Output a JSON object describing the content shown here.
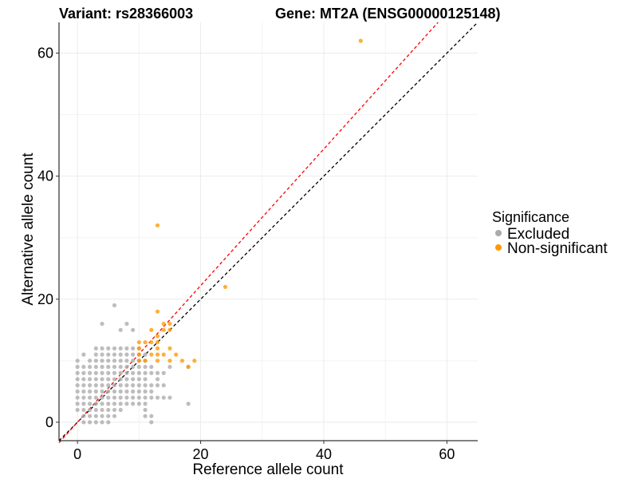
{
  "chart_data": {
    "type": "scatter",
    "title_variant": "Variant: rs28366003",
    "title_gene": "Gene: MT2A (ENSG00000125148)",
    "xlabel": "Reference allele count",
    "ylabel": "Alternative allele count",
    "xlim": [
      -3,
      65
    ],
    "ylim": [
      -3,
      65
    ],
    "x_ticks": [
      0,
      20,
      40,
      60
    ],
    "y_ticks": [
      0,
      20,
      40,
      60
    ],
    "grid": true,
    "reference_lines": [
      {
        "name": "identity",
        "style": "dashed",
        "color": "#000000",
        "slope": 1,
        "intercept": 0
      },
      {
        "name": "fit",
        "style": "dashed",
        "color": "#ff0000",
        "slope": 1.11,
        "intercept": 0
      }
    ],
    "legend": {
      "title": "Significance",
      "position": "right",
      "entries": [
        {
          "label": "Excluded",
          "color": "#aaaaaa"
        },
        {
          "label": "Non-significant",
          "color": "#ff9900"
        }
      ]
    },
    "series": [
      {
        "name": "Excluded",
        "color": "#aaaaaa",
        "points": [
          [
            0,
            2
          ],
          [
            0,
            3
          ],
          [
            0,
            4
          ],
          [
            0,
            5
          ],
          [
            0,
            6
          ],
          [
            0,
            7
          ],
          [
            0,
            8
          ],
          [
            0,
            9
          ],
          [
            0,
            10
          ],
          [
            1,
            0
          ],
          [
            1,
            1
          ],
          [
            1,
            2
          ],
          [
            1,
            3
          ],
          [
            1,
            4
          ],
          [
            1,
            5
          ],
          [
            1,
            6
          ],
          [
            1,
            7
          ],
          [
            1,
            8
          ],
          [
            1,
            9
          ],
          [
            1,
            11
          ],
          [
            2,
            0
          ],
          [
            2,
            1
          ],
          [
            2,
            2
          ],
          [
            2,
            3
          ],
          [
            2,
            4
          ],
          [
            2,
            5
          ],
          [
            2,
            6
          ],
          [
            2,
            7
          ],
          [
            2,
            8
          ],
          [
            2,
            9
          ],
          [
            2,
            10
          ],
          [
            3,
            0
          ],
          [
            3,
            1
          ],
          [
            3,
            2
          ],
          [
            3,
            3
          ],
          [
            3,
            4
          ],
          [
            3,
            5
          ],
          [
            3,
            6
          ],
          [
            3,
            7
          ],
          [
            3,
            8
          ],
          [
            3,
            9
          ],
          [
            3,
            10
          ],
          [
            3,
            11
          ],
          [
            3,
            12
          ],
          [
            4,
            0
          ],
          [
            4,
            1
          ],
          [
            4,
            2
          ],
          [
            4,
            3
          ],
          [
            4,
            4
          ],
          [
            4,
            5
          ],
          [
            4,
            6
          ],
          [
            4,
            7
          ],
          [
            4,
            8
          ],
          [
            4,
            9
          ],
          [
            4,
            10
          ],
          [
            4,
            11
          ],
          [
            4,
            12
          ],
          [
            4,
            16
          ],
          [
            5,
            0
          ],
          [
            5,
            1
          ],
          [
            5,
            2
          ],
          [
            5,
            3
          ],
          [
            5,
            4
          ],
          [
            5,
            5
          ],
          [
            5,
            6
          ],
          [
            5,
            7
          ],
          [
            5,
            8
          ],
          [
            5,
            9
          ],
          [
            5,
            10
          ],
          [
            5,
            11
          ],
          [
            5,
            12
          ],
          [
            6,
            1
          ],
          [
            6,
            2
          ],
          [
            6,
            3
          ],
          [
            6,
            4
          ],
          [
            6,
            5
          ],
          [
            6,
            6
          ],
          [
            6,
            7
          ],
          [
            6,
            8
          ],
          [
            6,
            9
          ],
          [
            6,
            10
          ],
          [
            6,
            11
          ],
          [
            6,
            12
          ],
          [
            6,
            19
          ],
          [
            7,
            2
          ],
          [
            7,
            3
          ],
          [
            7,
            4
          ],
          [
            7,
            5
          ],
          [
            7,
            6
          ],
          [
            7,
            7
          ],
          [
            7,
            8
          ],
          [
            7,
            9
          ],
          [
            7,
            10
          ],
          [
            7,
            11
          ],
          [
            7,
            12
          ],
          [
            7,
            15
          ],
          [
            8,
            3
          ],
          [
            8,
            4
          ],
          [
            8,
            5
          ],
          [
            8,
            6
          ],
          [
            8,
            7
          ],
          [
            8,
            8
          ],
          [
            8,
            9
          ],
          [
            8,
            10
          ],
          [
            8,
            11
          ],
          [
            8,
            12
          ],
          [
            8,
            16
          ],
          [
            9,
            3
          ],
          [
            9,
            4
          ],
          [
            9,
            5
          ],
          [
            9,
            6
          ],
          [
            9,
            7
          ],
          [
            9,
            8
          ],
          [
            9,
            9
          ],
          [
            9,
            10
          ],
          [
            9,
            11
          ],
          [
            9,
            12
          ],
          [
            9,
            15
          ],
          [
            10,
            3
          ],
          [
            10,
            4
          ],
          [
            10,
            5
          ],
          [
            10,
            6
          ],
          [
            10,
            7
          ],
          [
            10,
            8
          ],
          [
            10,
            9
          ],
          [
            10,
            10
          ],
          [
            10,
            11
          ],
          [
            10,
            12
          ],
          [
            11,
            1
          ],
          [
            11,
            2
          ],
          [
            11,
            3
          ],
          [
            11,
            4
          ],
          [
            11,
            5
          ],
          [
            11,
            6
          ],
          [
            11,
            7
          ],
          [
            11,
            8
          ],
          [
            11,
            9
          ],
          [
            11,
            10
          ],
          [
            11,
            11
          ],
          [
            12,
            0
          ],
          [
            12,
            1
          ],
          [
            12,
            4
          ],
          [
            12,
            5
          ],
          [
            12,
            6
          ],
          [
            12,
            8
          ],
          [
            12,
            9
          ],
          [
            13,
            4
          ],
          [
            13,
            6
          ],
          [
            13,
            7
          ],
          [
            13,
            8
          ],
          [
            14,
            4
          ],
          [
            14,
            6
          ],
          [
            14,
            8
          ],
          [
            15,
            4
          ],
          [
            15,
            9
          ],
          [
            18,
            3
          ],
          [
            18,
            9
          ]
        ]
      },
      {
        "name": "Non-significant",
        "color": "#ff9900",
        "points": [
          [
            10,
            10
          ],
          [
            10,
            11
          ],
          [
            10,
            12
          ],
          [
            10,
            13
          ],
          [
            11,
            10
          ],
          [
            11,
            13
          ],
          [
            12,
            11
          ],
          [
            12,
            13
          ],
          [
            12,
            15
          ],
          [
            13,
            10
          ],
          [
            13,
            11
          ],
          [
            13,
            12
          ],
          [
            13,
            13
          ],
          [
            13,
            14
          ],
          [
            13,
            18
          ],
          [
            13,
            32
          ],
          [
            14,
            11
          ],
          [
            14,
            15
          ],
          [
            14,
            16
          ],
          [
            15,
            10
          ],
          [
            15,
            12
          ],
          [
            15,
            15
          ],
          [
            15,
            16
          ],
          [
            16,
            11
          ],
          [
            17,
            10
          ],
          [
            18,
            9
          ],
          [
            19,
            10
          ],
          [
            24,
            22
          ],
          [
            46,
            62
          ]
        ]
      }
    ]
  }
}
